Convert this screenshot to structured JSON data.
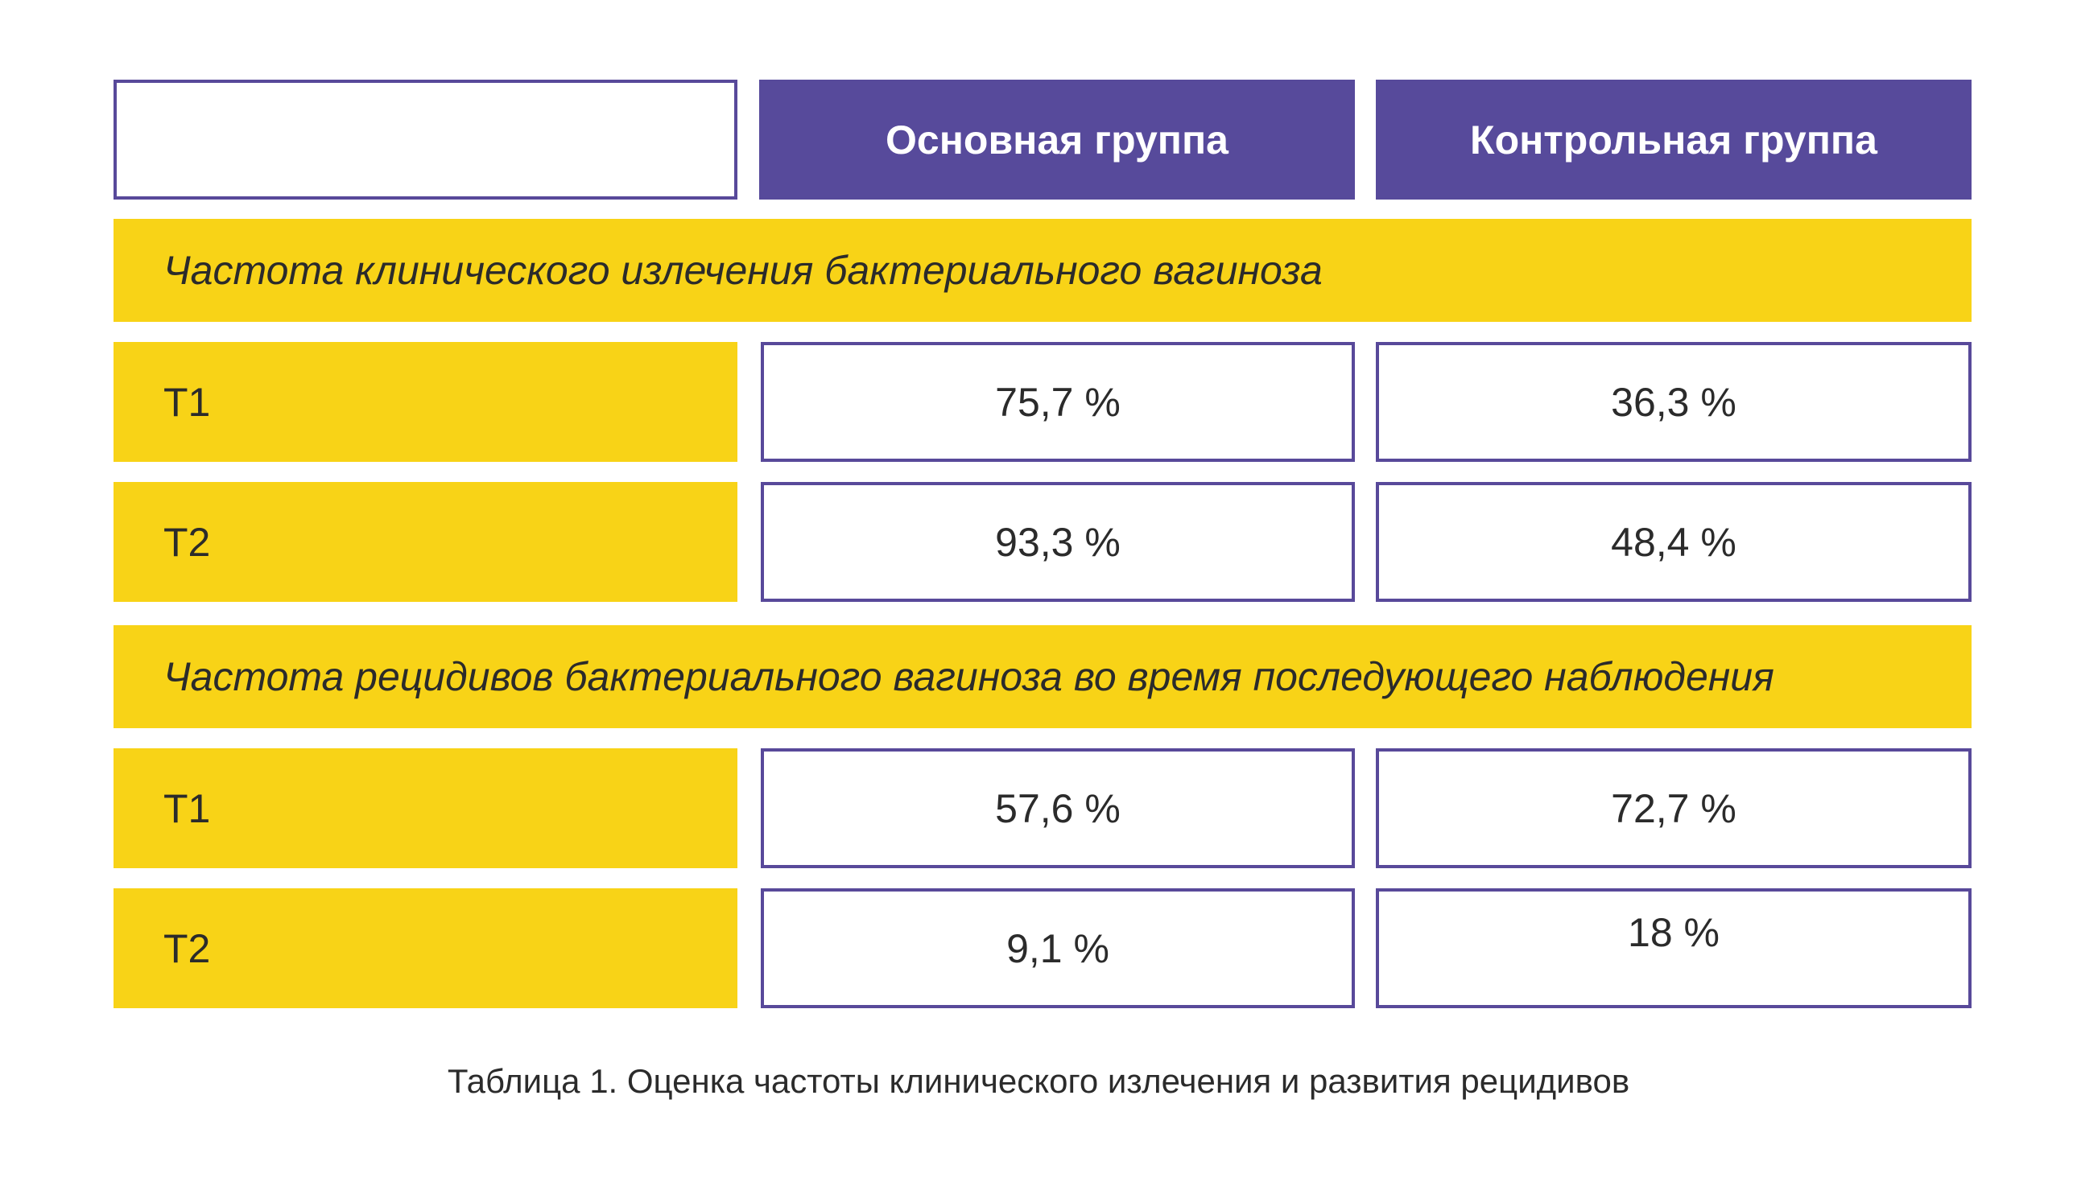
{
  "table": {
    "corner": "",
    "headers": [
      "Основная группа",
      "Контрольная группа"
    ],
    "sections": [
      {
        "title": "Частота клинического излечения бактериального вагиноза",
        "rows": [
          {
            "label": "T1",
            "values": [
              "75,7 %",
              "36,3 %"
            ]
          },
          {
            "label": "T2",
            "values": [
              "93,3 %",
              "48,4 %"
            ]
          }
        ]
      },
      {
        "title": "Частота рецидивов бактериального вагиноза во время последующего наблюдения",
        "rows": [
          {
            "label": "T1",
            "values": [
              "57,6 %",
              "72,7 %"
            ]
          },
          {
            "label": "T2",
            "values": [
              "9,1 %",
              "18 %"
            ]
          }
        ]
      }
    ],
    "caption": "Таблица 1. Оценка частоты клинического излечения и развития рецидивов"
  },
  "colors": {
    "header_bg": "#574a9b",
    "section_bg": "#f8d317",
    "border": "#58499a"
  }
}
